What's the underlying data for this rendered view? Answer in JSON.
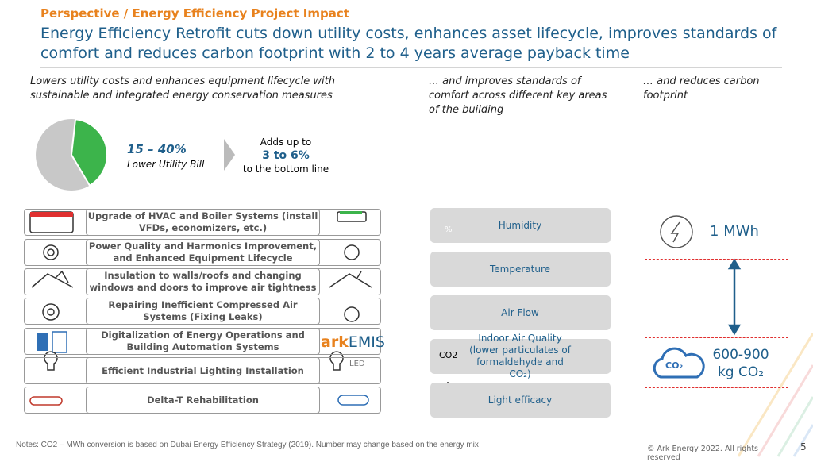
{
  "header": {
    "kicker": "Perspective / Energy Efficiency Project Impact",
    "title": "Energy Efficiency Retrofit cuts down utility costs, enhances asset lifecycle, improves standards of comfort and reduces carbon footprint with 2 to 4 years average payback time"
  },
  "columns": [
    "Lowers utility costs and enhances equipment lifecycle with sustainable and integrated energy conservation measures",
    "… and improves standards of comfort across different key areas of the building",
    "… and reduces carbon footprint"
  ],
  "savings": {
    "range": "15 – 40%",
    "label": "Lower Utility Bill",
    "adds_intro": "Adds up to",
    "adds_value": "3 to 6%",
    "adds_outro": "to the bottom line"
  },
  "measures": [
    "Upgrade of HVAC and Boiler Systems (install VFDs, economizers, etc.)",
    "Power Quality and Harmonics Improvement, and Enhanced Equipment Lifecycle",
    "Insulation to walls/roofs and changing windows and doors to improve air tightness",
    "Repairing Inefficient Compressed Air Systems (Fixing Leaks)",
    "Digitalization of Energy Operations and Building Automation Systems",
    "Efficient Industrial Lighting Installation",
    "Delta-T Rehabilitation"
  ],
  "brand": {
    "ark": "ark",
    "emis": "EMIS",
    "led": "LED"
  },
  "comfort": [
    "Humidity",
    "Temperature",
    "Air Flow",
    "Indoor Air Quality (lower particulates of formaldehyde and CO₂)",
    "Light efficacy"
  ],
  "icons": {
    "humidity": "%",
    "co2": "CO2",
    "cloud": "CO₂"
  },
  "carbon": {
    "energy": "1 MWh",
    "emission_range": "600-900",
    "emission_unit": "kg CO₂"
  },
  "footer": {
    "notes": "Notes: CO2 – MWh conversion is based on Dubai Energy Efficiency Strategy (2019). Number may change based on the energy mix",
    "copyright": "© Ark Energy 2022. All rights reserved",
    "page": "5"
  }
}
